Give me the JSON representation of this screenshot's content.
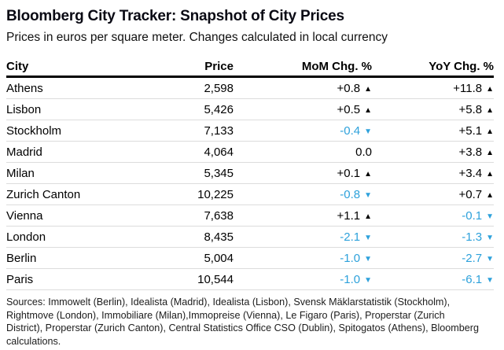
{
  "header": {
    "title": "Bloomberg City Tracker: Snapshot of City Prices",
    "subtitle": "Prices in euros per square meter. Changes calculated in local currency"
  },
  "colors": {
    "positive": "#000000",
    "negative": "#2da1db",
    "header_rule": "#000000",
    "row_rule": "#dcdcdc"
  },
  "table": {
    "columns": [
      "City",
      "Price",
      "MoM Chg. %",
      "YoY Chg. %"
    ],
    "rows": [
      {
        "city": "Athens",
        "price": "2,598",
        "mom": "+0.8",
        "mom_dir": "up",
        "yoy": "+11.8",
        "yoy_dir": "up"
      },
      {
        "city": "Lisbon",
        "price": "5,426",
        "mom": "+0.5",
        "mom_dir": "up",
        "yoy": "+5.8",
        "yoy_dir": "up"
      },
      {
        "city": "Stockholm",
        "price": "7,133",
        "mom": "-0.4",
        "mom_dir": "down",
        "yoy": "+5.1",
        "yoy_dir": "up"
      },
      {
        "city": "Madrid",
        "price": "4,064",
        "mom": "0.0",
        "mom_dir": "none",
        "yoy": "+3.8",
        "yoy_dir": "up"
      },
      {
        "city": "Milan",
        "price": "5,345",
        "mom": "+0.1",
        "mom_dir": "up",
        "yoy": "+3.4",
        "yoy_dir": "up"
      },
      {
        "city": "Zurich Canton",
        "price": "10,225",
        "mom": "-0.8",
        "mom_dir": "down",
        "yoy": "+0.7",
        "yoy_dir": "up"
      },
      {
        "city": "Vienna",
        "price": "7,638",
        "mom": "+1.1",
        "mom_dir": "up",
        "yoy": "-0.1",
        "yoy_dir": "down"
      },
      {
        "city": "London",
        "price": "8,435",
        "mom": "-2.1",
        "mom_dir": "down",
        "yoy": "-1.3",
        "yoy_dir": "down"
      },
      {
        "city": "Berlin",
        "price": "5,004",
        "mom": "-1.0",
        "mom_dir": "down",
        "yoy": "-2.7",
        "yoy_dir": "down"
      },
      {
        "city": "Paris",
        "price": "10,544",
        "mom": "-1.0",
        "mom_dir": "down",
        "yoy": "-6.1",
        "yoy_dir": "down"
      }
    ]
  },
  "chart_data": {
    "type": "table",
    "title": "Bloomberg City Tracker: Snapshot of City Prices",
    "subtitle": "Prices in euros per square meter. Changes calculated in local currency",
    "columns": [
      "City",
      "Price",
      "MoM Chg. %",
      "YoY Chg. %"
    ],
    "rows": [
      [
        "Athens",
        2598,
        0.8,
        11.8
      ],
      [
        "Lisbon",
        5426,
        0.5,
        5.8
      ],
      [
        "Stockholm",
        7133,
        -0.4,
        5.1
      ],
      [
        "Madrid",
        4064,
        0.0,
        3.8
      ],
      [
        "Milan",
        5345,
        0.1,
        3.4
      ],
      [
        "Zurich Canton",
        10225,
        -0.8,
        0.7
      ],
      [
        "Vienna",
        7638,
        1.1,
        -0.1
      ],
      [
        "London",
        8435,
        -2.1,
        -1.3
      ],
      [
        "Berlin",
        5004,
        -1.0,
        -2.7
      ],
      [
        "Paris",
        10544,
        -1.0,
        -6.1
      ]
    ],
    "notes": "Up arrows black, down arrows and negative values light blue"
  },
  "footer": {
    "sources": "Sources: Immowelt (Berlin), Idealista (Madrid), Idealista (Lisbon), Svensk Mäklarstatistik (Stockholm), Rightmove (London), Immobiliare (Milan),Immopreise (Vienna), Le Figaro (Paris), Properstar (Zurich District), Properstar (Zurich Canton), Central Statistics Office CSO (Dublin), Spitogatos (Athens), Bloomberg calculations."
  },
  "glyphs": {
    "up_arrow": "▲",
    "down_arrow": "▼"
  }
}
